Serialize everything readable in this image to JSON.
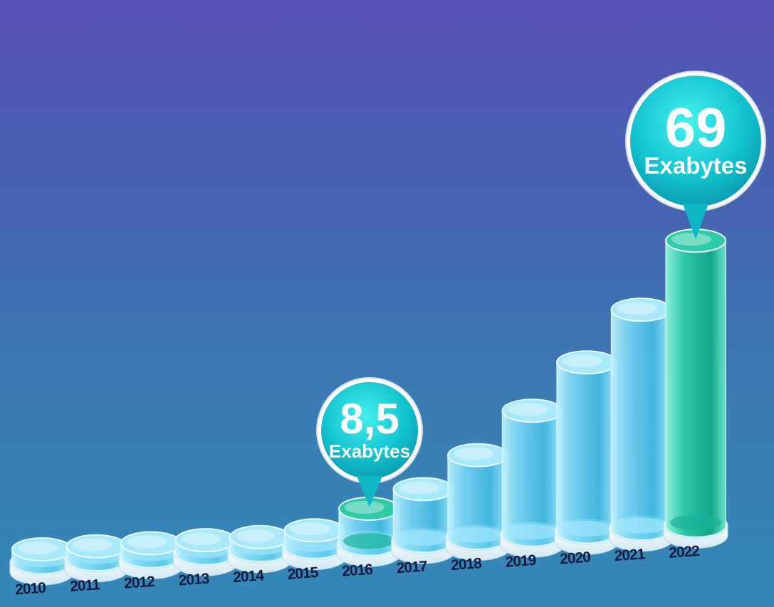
{
  "chart_data": {
    "type": "bar",
    "categories": [
      "2010",
      "2011",
      "2012",
      "2013",
      "2014",
      "2015",
      "2016",
      "2017",
      "2018",
      "2019",
      "2020",
      "2021",
      "2022"
    ],
    "values": [
      0.3,
      0.5,
      0.8,
      1.2,
      2.2,
      4.0,
      8.5,
      12.5,
      20,
      30,
      41,
      53,
      69
    ],
    "callouts": [
      {
        "category": "2016",
        "value": "8,5",
        "unit": "Exabytes"
      },
      {
        "category": "2022",
        "value": "69",
        "unit": "Exabytes"
      }
    ],
    "colors": {
      "cylinder_light": "#7fd4f2",
      "cylinder_dark": "#2fb7dd",
      "highlight": "#1fb59a",
      "callout": "#19c9d2"
    }
  }
}
